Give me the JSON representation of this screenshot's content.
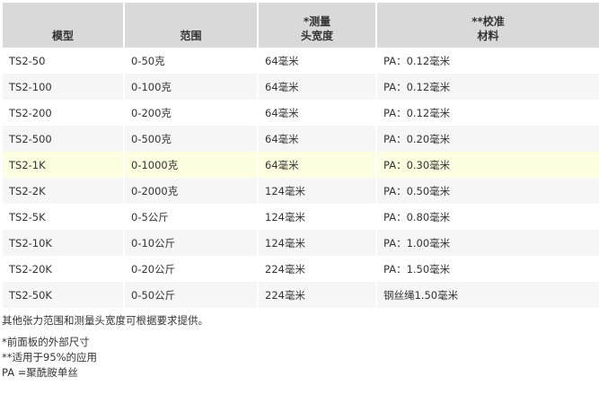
{
  "table": {
    "headers": [
      {
        "line1": "",
        "line2": "模型"
      },
      {
        "line1": "",
        "line2": "范围"
      },
      {
        "line1": "*测量",
        "line2": "头宽度"
      },
      {
        "line1": "**校准",
        "line2": "材料"
      }
    ],
    "rows": [
      [
        "TS2-50",
        "0-50克",
        "64毫米",
        "PA：0.12毫米"
      ],
      [
        "TS2-100",
        "0-100克",
        "64毫米",
        "PA：0.12毫米"
      ],
      [
        "TS2-200",
        "0-200克",
        "64毫米",
        "PA：0.12毫米"
      ],
      [
        "TS2-500",
        "0-500克",
        "64毫米",
        "PA：0.20毫米"
      ],
      [
        "TS2-1K",
        "0-1000克",
        "64毫米",
        "PA：0.30毫米"
      ],
      [
        "TS2-2K",
        "0-2000克",
        "124毫米",
        "PA：0.50毫米"
      ],
      [
        "TS2-5K",
        "0-5公斤",
        "124毫米",
        "PA：0.80毫米"
      ],
      [
        "TS2-10K",
        "0-10公斤",
        "124毫米",
        "PA：1.00毫米"
      ],
      [
        "TS2-20K",
        "0-20公斤",
        "224毫米",
        "PA：1.50毫米"
      ],
      [
        "TS2-50K",
        "0-50公斤",
        "224毫米",
        "钢丝绳1.50毫米"
      ]
    ],
    "highlighted_row": 4,
    "header_color": "#d9d9d9",
    "highlight_color": "#fefee0"
  },
  "notes": {
    "availability": "其他张力范围和测量头宽度可根据要求提供。",
    "footnote1": "*前面板的外部尺寸",
    "footnote2": "**适用于95%的应用",
    "footnote3": "PA =聚酰胺单丝"
  }
}
